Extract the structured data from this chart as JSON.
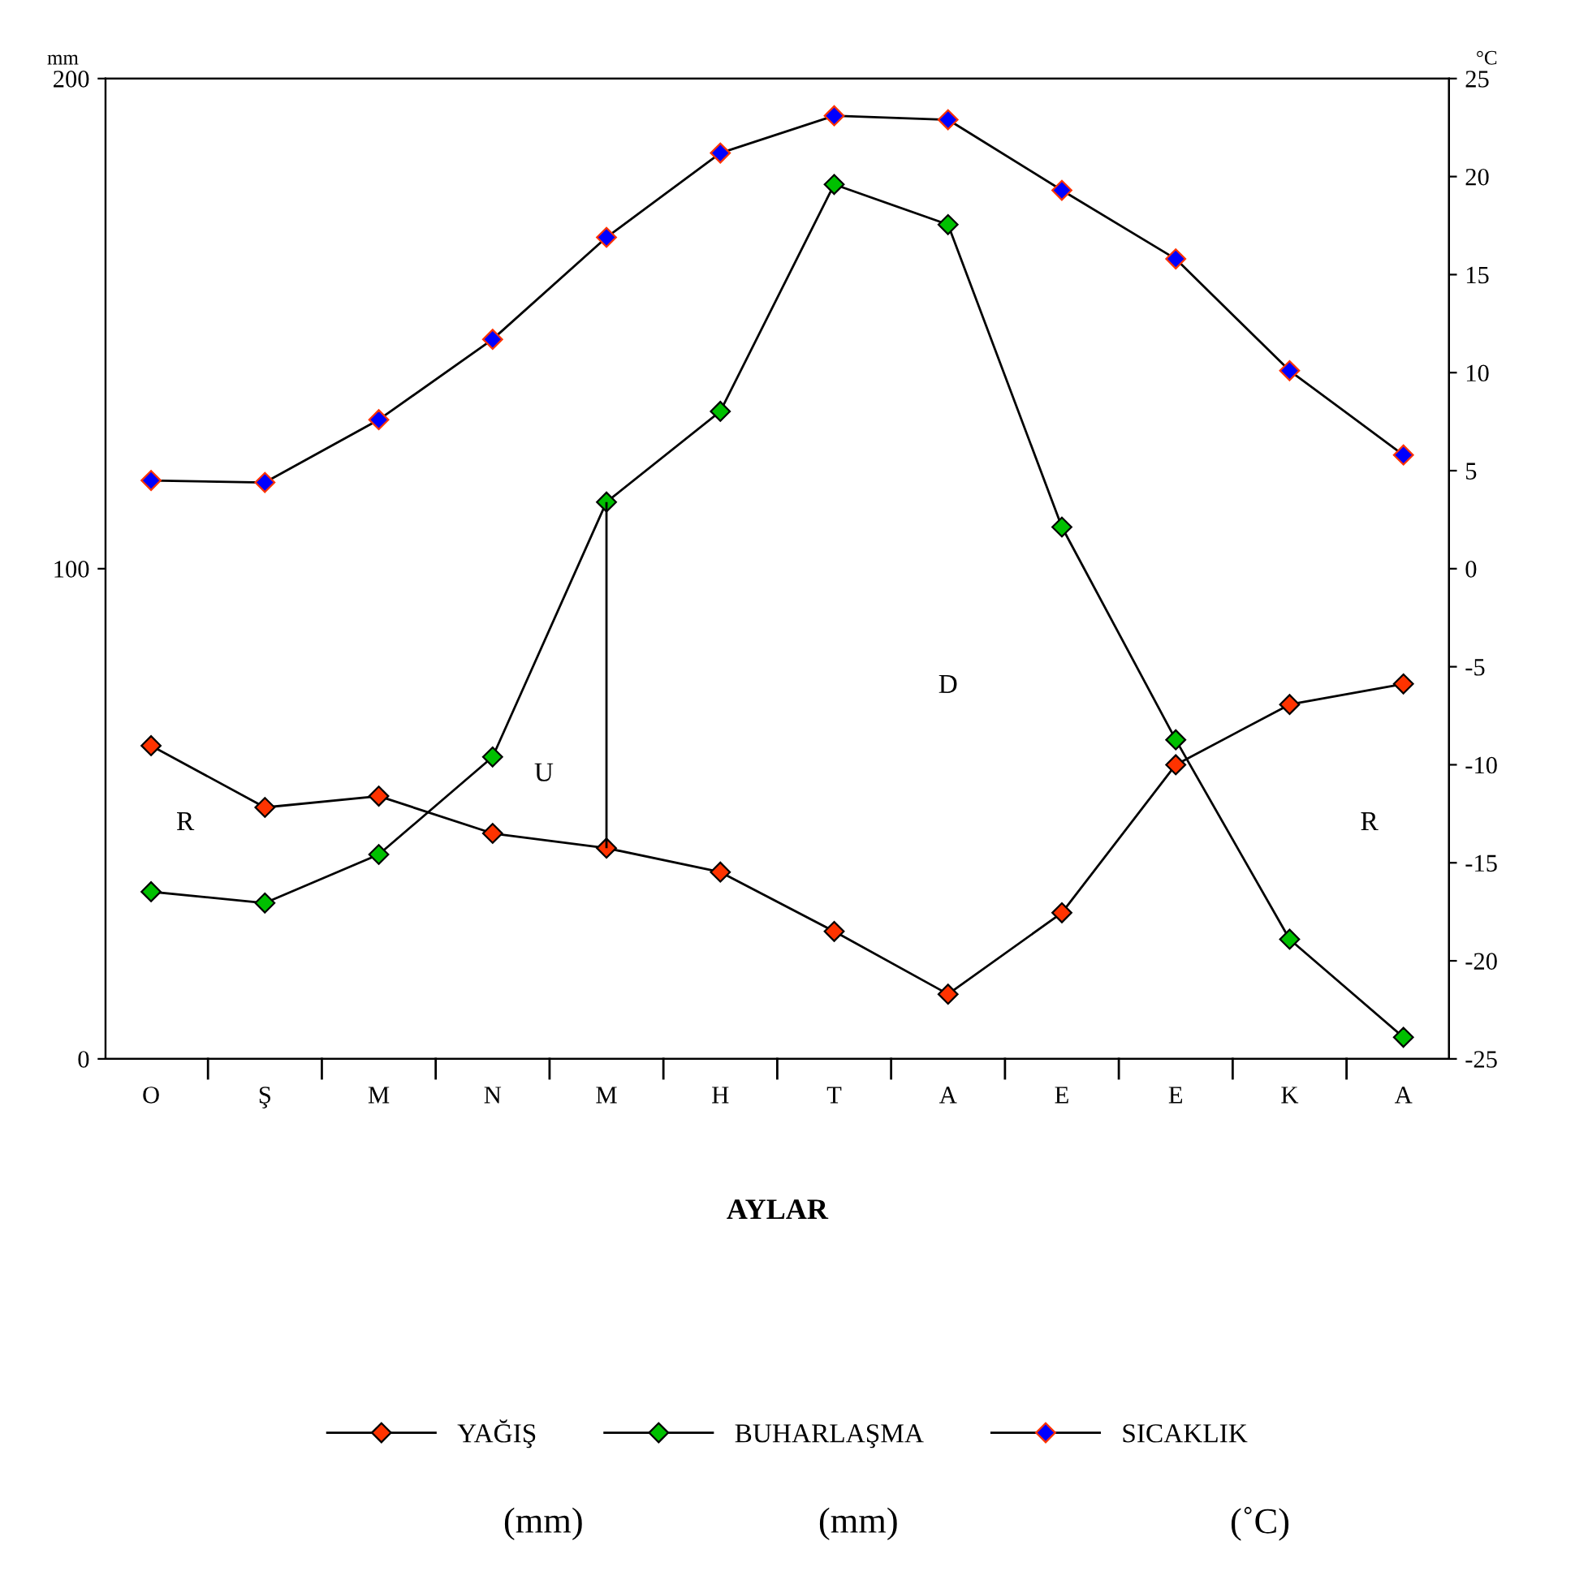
{
  "chart_data": {
    "type": "line",
    "xlabel": "AYLAR",
    "ylabel": "mm",
    "y2label": "°C",
    "categories": [
      "O",
      "Ş",
      "M",
      "N",
      "M",
      "H",
      "T",
      "A",
      "E",
      "E",
      "K",
      "A"
    ],
    "series": [
      {
        "name": "YAĞIŞ",
        "color": "#ff3300",
        "values": [
          63.9,
          51.3,
          53.6,
          46.0,
          43.0,
          38.1,
          26.0,
          13.2,
          29.8,
          60.0,
          72.3,
          76.5
        ],
        "errors": [
          null,
          null,
          null,
          null,
          [
            43.0,
            113.6
          ],
          null,
          null,
          null,
          null,
          null,
          null,
          null
        ]
      },
      {
        "name": "BUHARLAŞMA",
        "color": "#00c000",
        "values": [
          34.1,
          31.8,
          41.7,
          61.6,
          113.6,
          132.1,
          178.4,
          170.2,
          108.5,
          65.1,
          24.4,
          4.4
        ]
      },
      {
        "name": "SICAKLIK",
        "color": "#0000ff",
        "axis": "y2",
        "values": [
          4.5,
          4.4,
          7.6,
          11.7,
          16.9,
          21.2,
          23.1,
          22.9,
          19.3,
          15.8,
          10.1,
          5.8
        ]
      }
    ],
    "ylim": [
      0,
      200
    ],
    "yticks": [
      0,
      100,
      200
    ],
    "y2lim": [
      -25,
      25
    ],
    "y2ticks": [
      -25,
      -20,
      -15,
      -10,
      -5,
      0,
      5,
      10,
      15,
      20,
      25
    ],
    "marker": "diamond",
    "legend": "bottom",
    "grid": false,
    "annotations": [
      "R",
      "U",
      "D",
      "R",
      "(mm)",
      "(mm)",
      "(˚C)"
    ]
  }
}
